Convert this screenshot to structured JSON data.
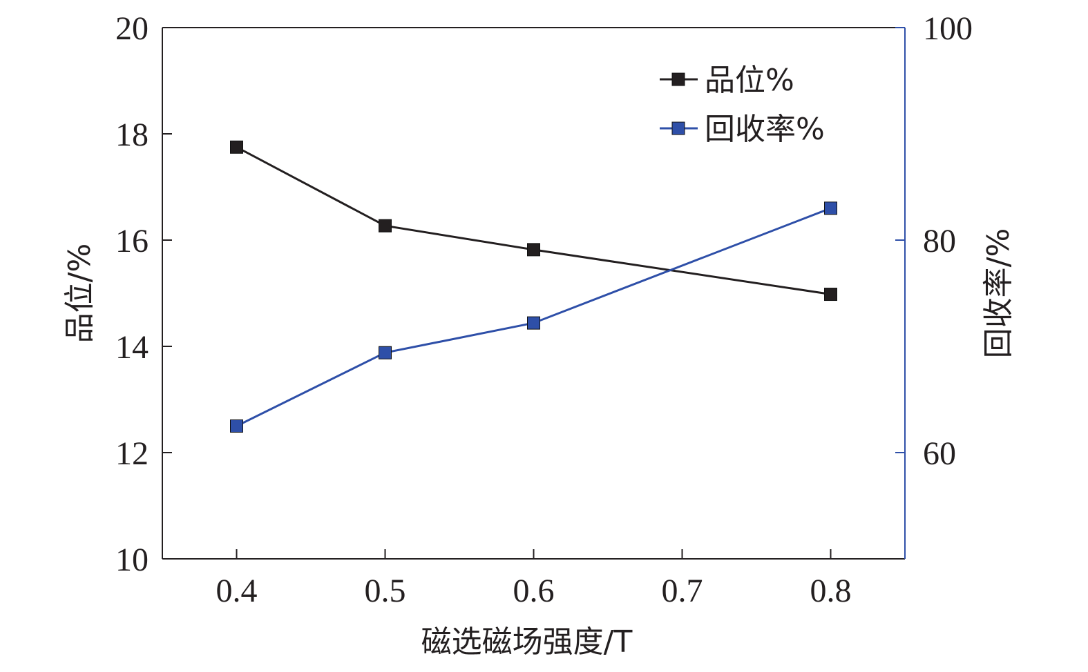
{
  "chart_data": {
    "type": "line",
    "xlabel": "磁选磁场强度/T",
    "ylabel_left": "品位/%",
    "ylabel_right": "回收率/%",
    "x_ticks": [
      "0.4",
      "0.5",
      "0.6",
      "0.7",
      "0.8"
    ],
    "x_tick_values": [
      0.4,
      0.5,
      0.6,
      0.7,
      0.8
    ],
    "xlim": [
      0.35,
      0.85
    ],
    "y_left_ticks": [
      "10",
      "12",
      "14",
      "16",
      "18",
      "20"
    ],
    "y_left_tick_values": [
      10,
      12,
      14,
      16,
      18,
      20
    ],
    "ylim_left": [
      10,
      20
    ],
    "y_right_ticks": [
      "60",
      "80",
      "100"
    ],
    "y_right_tick_values": [
      60,
      80,
      100
    ],
    "ylim_right": [
      50,
      100
    ],
    "legend_position": "top-right",
    "series": [
      {
        "name": "品位%",
        "axis": "left",
        "color": "#231f20",
        "marker": "square",
        "x": [
          0.4,
          0.5,
          0.6,
          0.8
        ],
        "y": [
          17.75,
          16.27,
          15.82,
          14.98
        ]
      },
      {
        "name": "回收率%",
        "axis": "right",
        "color": "#2e4fa8",
        "marker": "square",
        "x": [
          0.4,
          0.5,
          0.6,
          0.8
        ],
        "y": [
          62.5,
          69.4,
          72.2,
          83.0
        ]
      }
    ]
  }
}
